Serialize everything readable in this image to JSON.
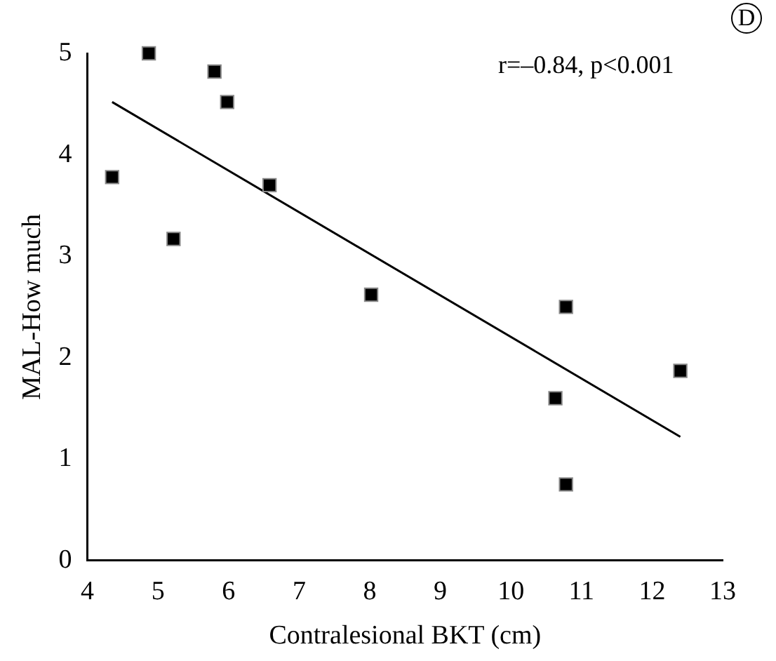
{
  "chart_data": {
    "type": "scatter",
    "xlabel": "Contralesional BKT (cm)",
    "ylabel": "MAL-How much",
    "annotations": [
      "r=–0.84, p<0.001",
      "D"
    ],
    "series": [
      {
        "color": "#000000",
        "marker": "square",
        "x": [
          4.35,
          4.87,
          5.22,
          5.8,
          5.98,
          6.58,
          8.02,
          10.63,
          10.78,
          10.78,
          12.4
        ],
        "values": [
          3.78,
          5.0,
          3.17,
          4.82,
          4.52,
          3.7,
          2.62,
          1.6,
          2.5,
          0.75,
          1.87
        ]
      },
      {
        "type": "line",
        "color": "#000000",
        "marker": "none",
        "x": [
          4.35,
          12.4
        ],
        "values": [
          4.52,
          1.22
        ]
      }
    ],
    "xlim": [
      4,
      13
    ],
    "xticks": [
      4,
      5,
      6,
      7,
      8,
      9,
      10,
      11,
      12,
      13
    ],
    "ylim": [
      0,
      5
    ],
    "yticks": [
      0,
      1,
      2,
      3,
      4,
      5
    ],
    "grid": false,
    "legend": false
  }
}
